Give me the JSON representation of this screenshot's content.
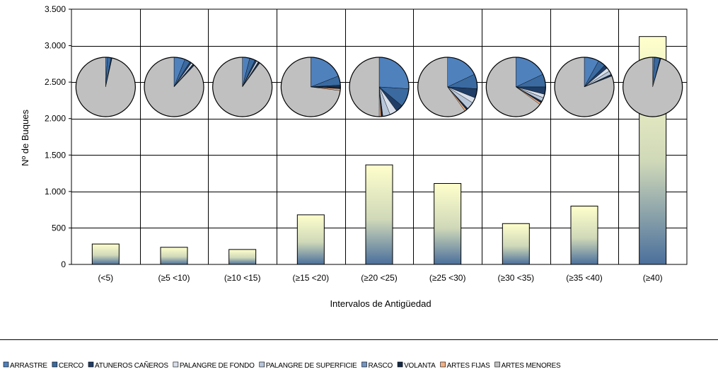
{
  "chart_data": {
    "type": "bar",
    "title": "",
    "xlabel": "Intervalos de Antigüedad",
    "ylabel": "Nº de Buques",
    "ylim": [
      0,
      3500
    ],
    "yticks": [
      0,
      500,
      1000,
      1500,
      2000,
      2500,
      3000,
      3500
    ],
    "ytick_labels": [
      "0",
      "500",
      "1.000",
      "1.500",
      "2.000",
      "2.500",
      "3.000",
      "3.500"
    ],
    "grid": true,
    "legend_position": "bottom",
    "categories": [
      "(<5)",
      "(≥5  <10)",
      "(≥10  <15)",
      "(≥15  <20)",
      "(≥20  <25)",
      "(≥25  <30)",
      "(≥30  <35)",
      "(≥35  <40)",
      "(≥40)"
    ],
    "values": [
      280,
      235,
      205,
      680,
      1365,
      1110,
      560,
      800,
      3125
    ],
    "bar_gradient": {
      "top": "#ffffcc",
      "bottom": "#4a6f9c"
    },
    "pie_series": [
      {
        "name": "ARRASTRE",
        "color": "#4f81bd"
      },
      {
        "name": "CERCO",
        "color": "#3a6aa0"
      },
      {
        "name": "ATUNEROS CAÑEROS",
        "color": "#1f3d66"
      },
      {
        "name": "PALANGRE DE FONDO",
        "color": "#d8dfea"
      },
      {
        "name": "PALANGRE DE SUPERFICIE",
        "color": "#b8c6da"
      },
      {
        "name": "RASCO",
        "color": "#7395c2"
      },
      {
        "name": "VOLANTA",
        "color": "#152a45"
      },
      {
        "name": "ARTES FIJAS",
        "color": "#f4b183"
      },
      {
        "name": "ARTES MENORES",
        "color": "#c0c0c0"
      }
    ],
    "pie_shares": [
      [
        1,
        2,
        0,
        0,
        0,
        0,
        0.5,
        0,
        96.5
      ],
      [
        6,
        3,
        1,
        1,
        0,
        0,
        1,
        0,
        88
      ],
      [
        4,
        3,
        1,
        1,
        0,
        0,
        1,
        0,
        90
      ],
      [
        19,
        5,
        1,
        0,
        0,
        0,
        1,
        1,
        73
      ],
      [
        26,
        10,
        4,
        4,
        4,
        0,
        1,
        1,
        50
      ],
      [
        18,
        8,
        5,
        3,
        4,
        0,
        1,
        1,
        60
      ],
      [
        18,
        7,
        4,
        2,
        2,
        0,
        1,
        1,
        65
      ],
      [
        8,
        4,
        2,
        2,
        2,
        0,
        1,
        0,
        81
      ],
      [
        1,
        3,
        0,
        0,
        0,
        0,
        0.5,
        0,
        95.5
      ]
    ]
  }
}
